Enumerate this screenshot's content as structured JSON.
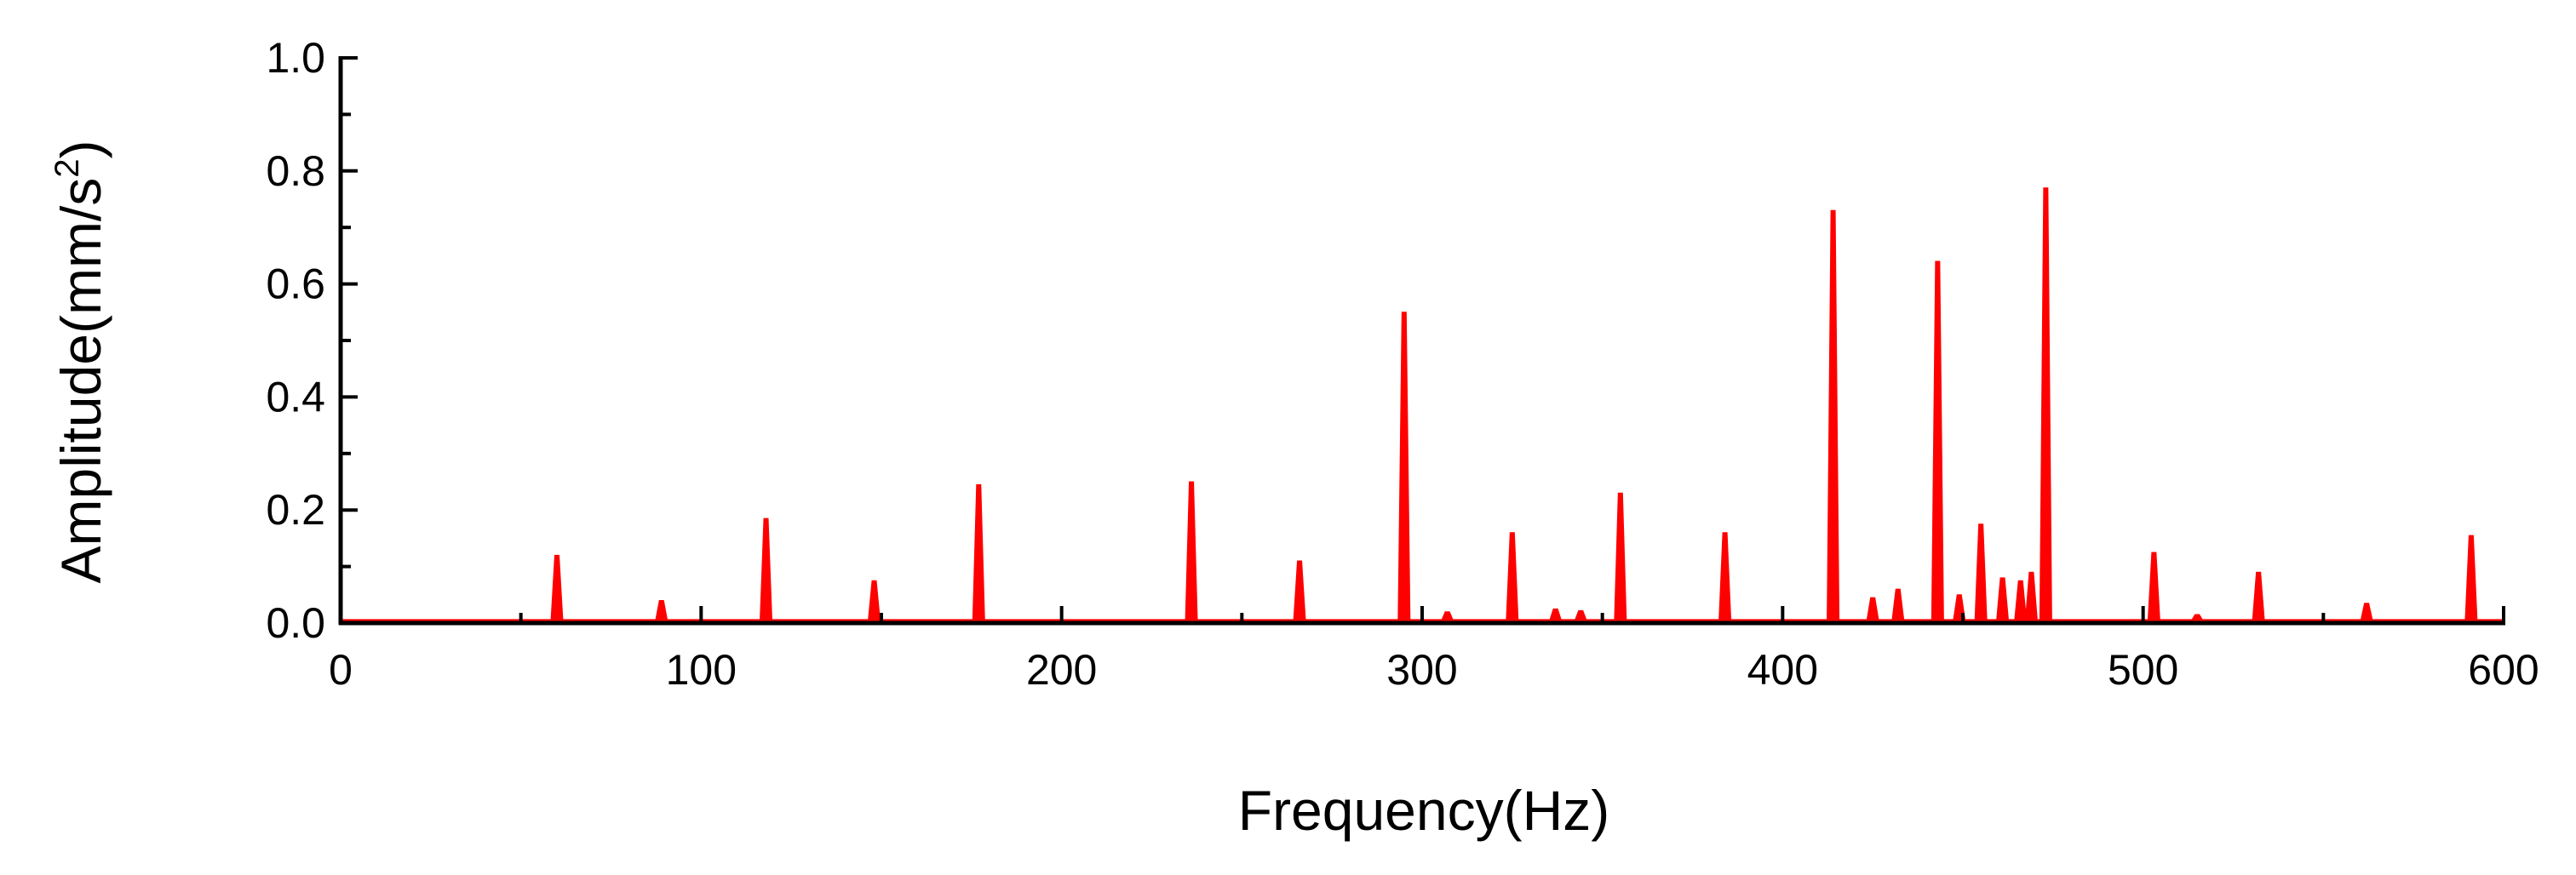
{
  "chart_data": {
    "type": "line",
    "title": "",
    "xlabel": "Frequency(Hz)",
    "ylabel": "Amplitude(mm/s",
    "ylabel_sup": "2",
    "ylabel_close": ")",
    "xlim": [
      0,
      600
    ],
    "ylim": [
      0.0,
      1.0
    ],
    "x_ticks": [
      0,
      100,
      200,
      300,
      400,
      500,
      600
    ],
    "x_tick_labels": [
      "0",
      "100",
      "200",
      "300",
      "400",
      "500",
      "600"
    ],
    "y_ticks": [
      0.0,
      0.2,
      0.4,
      0.6,
      0.8,
      1.0
    ],
    "y_tick_labels": [
      "0.0",
      "0.2",
      "0.4",
      "0.6",
      "0.8",
      "1.0"
    ],
    "grid": false,
    "legend": "none",
    "series": [
      {
        "color": "#ff0000",
        "peaks": [
          [
            60,
            0.12
          ],
          [
            89,
            0.04
          ],
          [
            118,
            0.185
          ],
          [
            148,
            0.075
          ],
          [
            177,
            0.245
          ],
          [
            236,
            0.25
          ],
          [
            266,
            0.11
          ],
          [
            295,
            0.55
          ],
          [
            307,
            0.02
          ],
          [
            325,
            0.16
          ],
          [
            337,
            0.025
          ],
          [
            344,
            0.022
          ],
          [
            355,
            0.23
          ],
          [
            384,
            0.16
          ],
          [
            414,
            0.73
          ],
          [
            425,
            0.045
          ],
          [
            432,
            0.06
          ],
          [
            443,
            0.64
          ],
          [
            449,
            0.05
          ],
          [
            455,
            0.175
          ],
          [
            461,
            0.08
          ],
          [
            466,
            0.075
          ],
          [
            469,
            0.09
          ],
          [
            473,
            0.77
          ],
          [
            503,
            0.125
          ],
          [
            515,
            0.015
          ],
          [
            532,
            0.09
          ],
          [
            562,
            0.035
          ],
          [
            591,
            0.155
          ]
        ]
      }
    ]
  }
}
